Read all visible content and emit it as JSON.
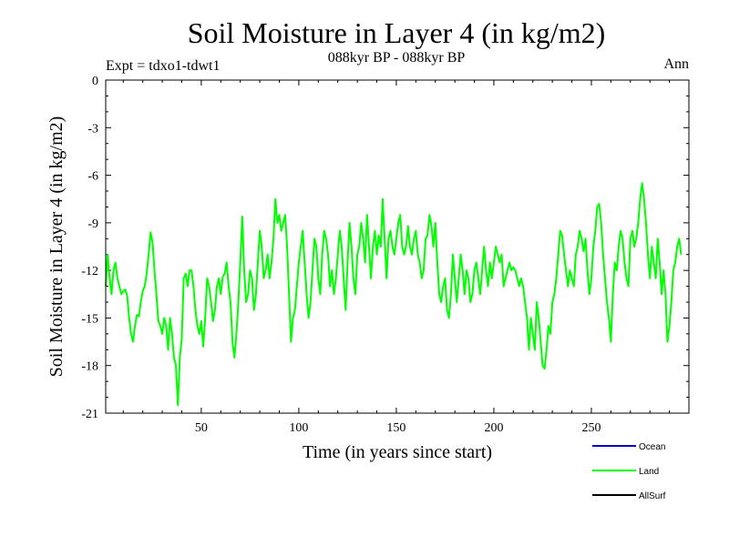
{
  "chart_data": {
    "type": "line",
    "title": "Soil Moisture in Layer 4 (in kg/m2)",
    "subtitle": "088kyr BP - 088kyr BP",
    "experiment_label": "Expt = tdxo1-tdwt1",
    "period_label": "Ann",
    "xlabel": "Time (in years since start)",
    "ylabel": "Soil Moisture in Layer 4 (in kg/m2)",
    "xlim": [
      1,
      300
    ],
    "ylim": [
      -21,
      0
    ],
    "x_ticks": [
      50,
      100,
      150,
      200,
      250
    ],
    "y_ticks": [
      0,
      -3,
      -6,
      -9,
      -12,
      -15,
      -18,
      -21
    ],
    "legend": [
      "Ocean",
      "Land",
      "AllSurf"
    ],
    "legend_colors": [
      "#0000cc",
      "#00ff00",
      "#000000"
    ],
    "series": [
      {
        "name": "Land",
        "color": "#00ff00",
        "x_start": 1,
        "x_step": 1,
        "values": [
          -13.0,
          -11.0,
          -12.5,
          -13.5,
          -12.0,
          -11.5,
          -12.5,
          -13.0,
          -13.5,
          -13.3,
          -13.2,
          -13.6,
          -15.0,
          -16.0,
          -16.5,
          -15.5,
          -14.8,
          -14.9,
          -14.0,
          -13.3,
          -13.0,
          -12.2,
          -11.0,
          -9.6,
          -10.2,
          -12.0,
          -13.5,
          -15.2,
          -15.5,
          -16.0,
          -15.0,
          -15.5,
          -17.0,
          -15.0,
          -16.0,
          -17.5,
          -18.0,
          -20.5,
          -17.5,
          -16.3,
          -12.5,
          -12.2,
          -13.0,
          -12.0,
          -12.0,
          -13.0,
          -14.5,
          -15.5,
          -16.0,
          -15.2,
          -16.8,
          -15.0,
          -12.5,
          -13.0,
          -14.0,
          -15.2,
          -14.5,
          -13.0,
          -12.5,
          -13.5,
          -12.4,
          -12.2,
          -11.5,
          -13.0,
          -14.0,
          -16.5,
          -17.5,
          -16.0,
          -14.0,
          -11.5,
          -8.6,
          -12.0,
          -14.0,
          -13.5,
          -12.0,
          -12.5,
          -14.5,
          -13.5,
          -11.5,
          -9.5,
          -10.5,
          -12.5,
          -12.0,
          -11.0,
          -12.5,
          -11.5,
          -10.0,
          -7.5,
          -9.0,
          -8.5,
          -9.5,
          -9.0,
          -8.5,
          -10.5,
          -13.5,
          -16.5,
          -15.0,
          -14.5,
          -13.0,
          -11.5,
          -10.5,
          -9.5,
          -11.5,
          -13.5,
          -15.0,
          -14.0,
          -12.0,
          -10.0,
          -10.5,
          -12.5,
          -13.5,
          -11.0,
          -9.5,
          -10.0,
          -11.0,
          -13.0,
          -12.0,
          -13.5,
          -12.5,
          -11.0,
          -9.5,
          -10.5,
          -12.5,
          -14.5,
          -11.5,
          -9.0,
          -10.5,
          -12.5,
          -13.5,
          -11.0,
          -10.5,
          -9.0,
          -10.0,
          -11.5,
          -8.5,
          -10.5,
          -12.5,
          -10.5,
          -9.5,
          -11.0,
          -9.8,
          -10.5,
          -7.5,
          -10.0,
          -12.5,
          -10.0,
          -9.5,
          -10.5,
          -11.0,
          -10.0,
          -9.0,
          -8.5,
          -10.5,
          -11.0,
          -10.5,
          -9.2,
          -10.5,
          -11.0,
          -10.0,
          -9.5,
          -11.0,
          -11.5,
          -12.5,
          -12.0,
          -10.0,
          -9.8,
          -8.5,
          -9.2,
          -10.5,
          -9.0,
          -11.5,
          -13.5,
          -14.0,
          -13.0,
          -12.5,
          -14.5,
          -15.0,
          -13.5,
          -11.0,
          -12.5,
          -14.0,
          -12.5,
          -11.0,
          -12.0,
          -13.5,
          -12.0,
          -12.5,
          -14.0,
          -13.5,
          -12.0,
          -11.5,
          -12.5,
          -13.5,
          -12.0,
          -10.5,
          -12.0,
          -13.0,
          -11.5,
          -12.5,
          -11.5,
          -10.5,
          -11.0,
          -11.5,
          -11.0,
          -13.0,
          -12.5,
          -12.0,
          -11.5,
          -12.0,
          -11.8,
          -12.0,
          -12.5,
          -13.0,
          -12.5,
          -13.0,
          -14.0,
          -15.0,
          -17.0,
          -15.0,
          -16.0,
          -17.0,
          -14.0,
          -15.0,
          -16.5,
          -18.0,
          -18.2,
          -17.0,
          -15.5,
          -16.0,
          -14.0,
          -13.5,
          -12.5,
          -11.0,
          -9.5,
          -9.8,
          -11.0,
          -12.0,
          -13.0,
          -12.0,
          -12.5,
          -13.0,
          -11.0,
          -10.5,
          -9.5,
          -10.0,
          -10.8,
          -10.0,
          -12.0,
          -13.5,
          -12.5,
          -10.5,
          -9.5,
          -8.0,
          -7.8,
          -9.0,
          -11.0,
          -12.5,
          -14.0,
          -15.0,
          -16.5,
          -13.5,
          -11.5,
          -12.0,
          -10.5,
          -9.5,
          -10.0,
          -11.5,
          -12.5,
          -13.0,
          -10.0,
          -9.5,
          -10.5,
          -10.0,
          -9.0,
          -7.5,
          -6.5,
          -7.5,
          -9.0,
          -11.0,
          -12.5,
          -10.5,
          -11.5,
          -12.5,
          -10.0,
          -11.5,
          -13.5,
          -12.0,
          -13.5,
          -16.5,
          -15.5,
          -14.0,
          -12.0,
          -11.5,
          -10.5,
          -10.0,
          -11.0
        ]
      }
    ]
  }
}
